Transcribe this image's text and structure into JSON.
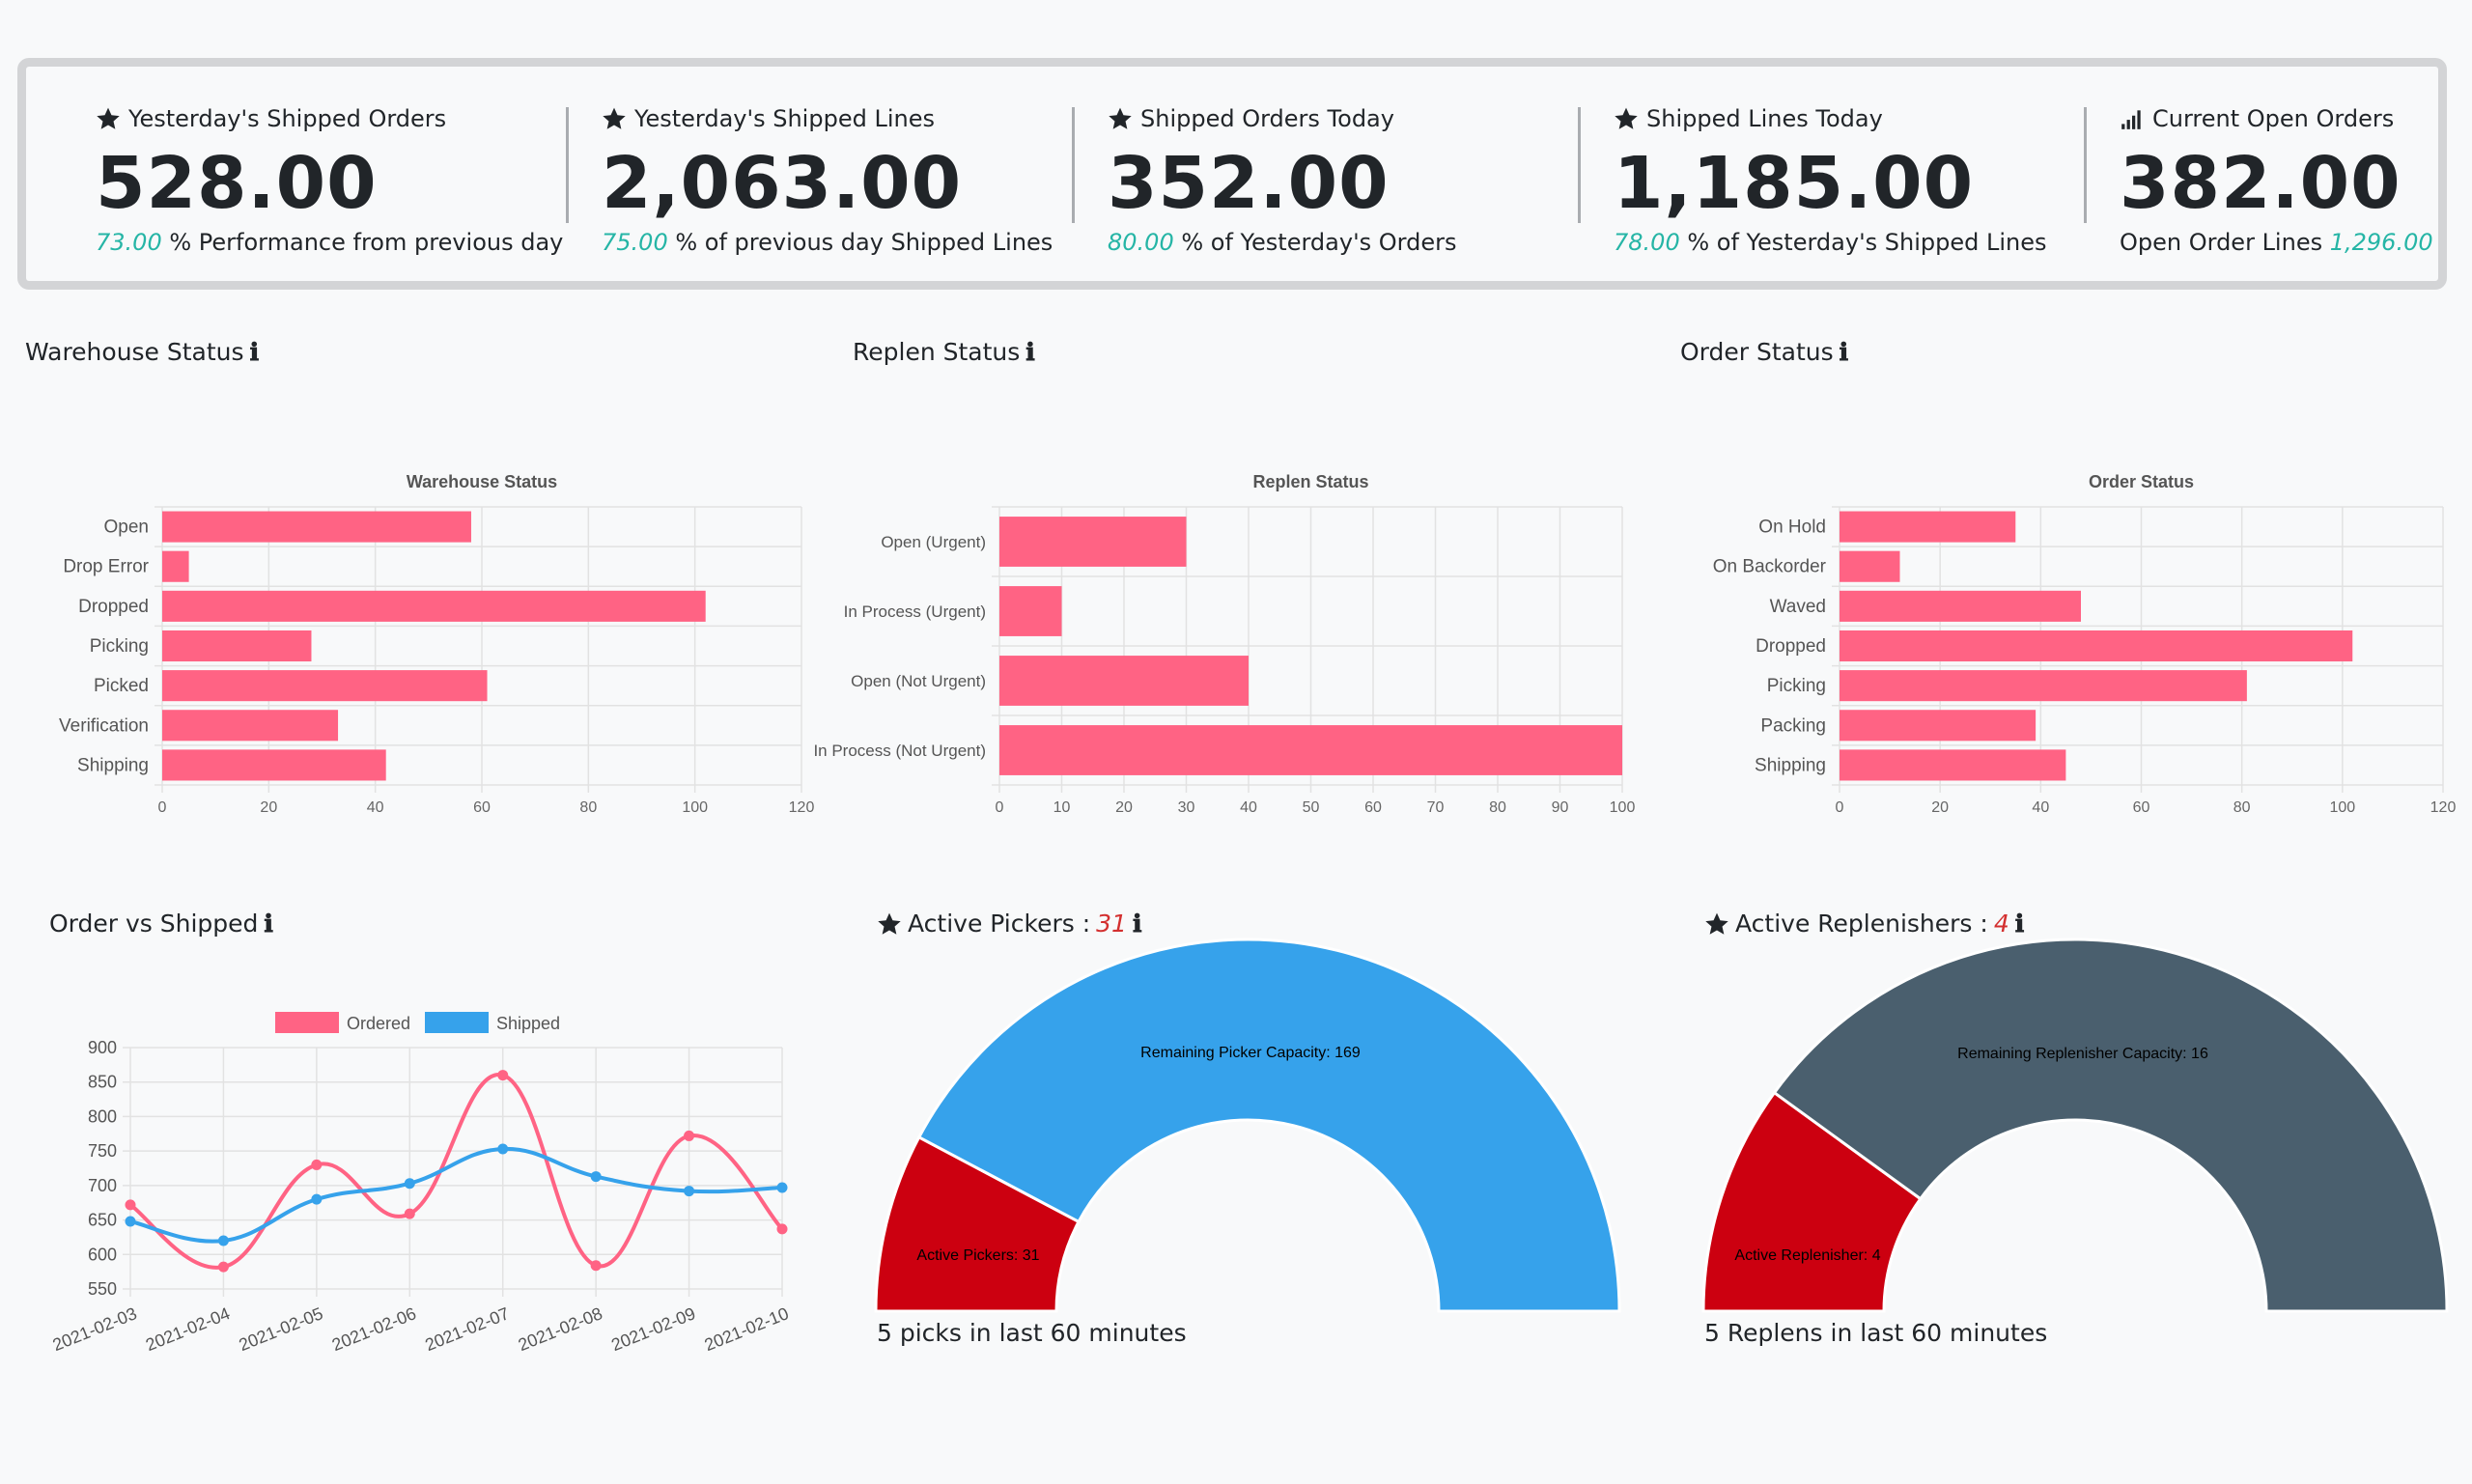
{
  "kpis": [
    {
      "title": "Yesterday's Shipped Orders",
      "icon": "star-icon",
      "value": "528.00",
      "sub_value": "73.00",
      "sub_text": "% Performance from previous day",
      "sub_order": "value-first"
    },
    {
      "title": "Yesterday's Shipped Lines",
      "icon": "star-icon",
      "value": "2,063.00",
      "sub_value": "75.00",
      "sub_text": "% of previous day Shipped Lines",
      "sub_order": "value-first"
    },
    {
      "title": "Shipped Orders Today",
      "icon": "star-icon",
      "value": "352.00",
      "sub_value": "80.00",
      "sub_text": "% of Yesterday's Orders",
      "sub_order": "value-first"
    },
    {
      "title": "Shipped Lines Today",
      "icon": "star-icon",
      "value": "1,185.00",
      "sub_value": "78.00",
      "sub_text": "% of Yesterday's Shipped Lines",
      "sub_order": "value-first"
    },
    {
      "title": "Current Open Orders",
      "icon": "signal-bars-icon",
      "value": "382.00",
      "sub_value": "1,296.00",
      "sub_text": "Open Order Lines",
      "sub_order": "text-first"
    }
  ],
  "sections": {
    "warehouse": {
      "title": "Warehouse Status",
      "icon": "info-icon"
    },
    "replen": {
      "title": "Replen Status",
      "icon": "info-icon"
    },
    "order": {
      "title": "Order Status",
      "icon": "info-icon"
    },
    "order_vs_shipped": {
      "title": "Order vs Shipped",
      "icon": "info-icon"
    },
    "active_pickers": {
      "title": "Active Pickers :",
      "count": "31",
      "icon": "info-icon",
      "caption": "5 picks in last 60 minutes"
    },
    "active_replenishers": {
      "title": "Active Replenishers :",
      "count": "4",
      "icon": "info-icon",
      "caption": "5 Replens in last 60 minutes"
    }
  },
  "colors": {
    "bar": "#ff6384",
    "ordered": "#ff6384",
    "shipped": "#36a2eb",
    "active": "#cc0010",
    "picker_remaining": "#36a2eb",
    "replenisher_remaining": "#4a5f6e",
    "teal": "#26b5a6"
  },
  "chart_data": [
    {
      "id": "warehouse-status",
      "type": "bar",
      "orientation": "horizontal",
      "title": "Warehouse Status",
      "categories": [
        "Open",
        "Drop Error",
        "Dropped",
        "Picking",
        "Picked",
        "Verification",
        "Shipping"
      ],
      "values": [
        58,
        5,
        102,
        28,
        61,
        33,
        42
      ],
      "xlim": [
        0,
        120
      ],
      "xticks": [
        0,
        20,
        40,
        60,
        80,
        100,
        120
      ],
      "grid": true
    },
    {
      "id": "replen-status",
      "type": "bar",
      "orientation": "horizontal",
      "title": "Replen Status",
      "categories": [
        "Open (Urgent)",
        "In Process (Urgent)",
        "Open (Not Urgent)",
        "In Process (Not Urgent)"
      ],
      "values": [
        30,
        10,
        40,
        100
      ],
      "xlim": [
        0,
        100
      ],
      "xticks": [
        0,
        10,
        20,
        30,
        40,
        50,
        60,
        70,
        80,
        90,
        100
      ],
      "grid": true
    },
    {
      "id": "order-status",
      "type": "bar",
      "orientation": "horizontal",
      "title": "Order Status",
      "categories": [
        "On Hold",
        "On Backorder",
        "Waved",
        "Dropped",
        "Picking",
        "Packing",
        "Shipping"
      ],
      "values": [
        35,
        12,
        48,
        102,
        81,
        39,
        45
      ],
      "xlim": [
        0,
        120
      ],
      "xticks": [
        0,
        20,
        40,
        60,
        80,
        100,
        120
      ],
      "grid": true
    },
    {
      "id": "order-vs-shipped",
      "type": "line",
      "title": "",
      "x": [
        "2021-02-03",
        "2021-02-04",
        "2021-02-05",
        "2021-02-06",
        "2021-02-07",
        "2021-02-08",
        "2021-02-09",
        "2021-02-10"
      ],
      "series": [
        {
          "name": "Ordered",
          "values": [
            672,
            582,
            730,
            659,
            860,
            584,
            772,
            637
          ]
        },
        {
          "name": "Shipped",
          "values": [
            648,
            620,
            680,
            703,
            753,
            713,
            692,
            697
          ]
        }
      ],
      "ylim": [
        550,
        900
      ],
      "yticks": [
        550,
        600,
        650,
        700,
        750,
        800,
        850,
        900
      ],
      "legend": "top",
      "grid": true
    },
    {
      "id": "active-pickers",
      "type": "pie",
      "subtype": "half-doughnut",
      "slices": [
        {
          "label": "Active Pickers",
          "value": 31
        },
        {
          "label": "Remaining Picker Capacity",
          "value": 169
        }
      ]
    },
    {
      "id": "active-replenishers",
      "type": "pie",
      "subtype": "half-doughnut",
      "slices": [
        {
          "label": "Active Replenisher",
          "value": 4
        },
        {
          "label": "Remaining Replenisher Capacity",
          "value": 16
        }
      ]
    }
  ]
}
